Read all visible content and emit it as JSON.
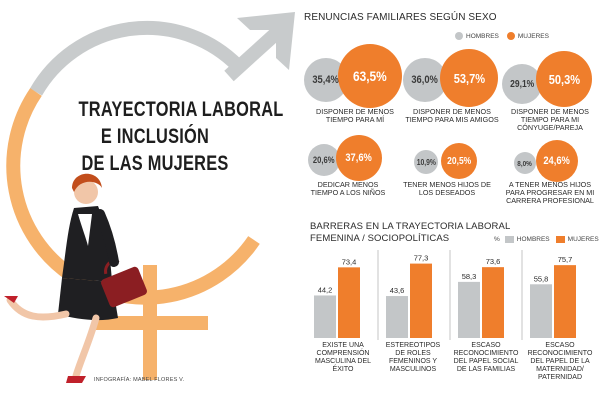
{
  "title": {
    "line1": "TRAYECTORIA LABORAL",
    "line2": "E INCLUSIÓN",
    "line3": "DE LAS MUJERES"
  },
  "credit": "INFOGRAFÍA: MABEL FLORES V.",
  "colors": {
    "hombres": "#c3c6c8",
    "mujeres": "#ef7e2c",
    "symbol_gray": "#c8cbcc",
    "symbol_orange": "#f6b26b"
  },
  "renuncias": {
    "title": "RENUNCIAS FAMILIARES SEGÚN SEXO",
    "legend": {
      "hombres": "HOMBRES",
      "mujeres": "MUJERES"
    },
    "items": [
      {
        "hombres": "35,4%",
        "mujeres": "63,5%",
        "label": "DISPONER DE MENOS TIEMPO PARA MÍ"
      },
      {
        "hombres": "36,0%",
        "mujeres": "53,7%",
        "label": "DISPONER DE MENOS TIEMPO PARA MIS AMIGOS"
      },
      {
        "hombres": "29,1%",
        "mujeres": "50,3%",
        "label": "DISPONER DE MENOS TIEMPO PARA MI CÓNYUGE/PAREJA"
      },
      {
        "hombres": "20,6%",
        "mujeres": "37,6%",
        "label": "DEDICAR MENOS TIEMPO A LOS NIÑOS"
      },
      {
        "hombres": "10,9%",
        "mujeres": "20,5%",
        "label": "TENER MENOS HIJOS DE LOS DESEADOS"
      },
      {
        "hombres": "8,0%",
        "mujeres": "24,6%",
        "label": "A TENER MENOS HIJOS PARA PROGRESAR EN MI CARRERA PROFESIONAL"
      }
    ]
  },
  "barreras": {
    "title_line1": "BARRERAS EN LA TRAYECTORIA LABORAL",
    "title_line2": "FEMENINA / SOCIOPOLÍTICAS",
    "legend": {
      "pct": "%",
      "hombres": "HOMBRES",
      "mujeres": "MUJERES"
    }
  },
  "chart_data": {
    "type": "bar",
    "title": "BARRERAS EN LA TRAYECTORIA LABORAL FEMENINA / SOCIOPOLÍTICAS",
    "categories": [
      "EXISTE UNA COMPRENSIÓN MASCULINA DEL ÉXITO",
      "ESTEREOTIPOS DE ROLES FEMENINOS Y MASCULINOS",
      "ESCASO RECONOCIMIENTO DEL PAPEL SOCIAL DE LAS FAMILIAS",
      "ESCASO RECONOCIMIENTO DEL PAPEL DE LA MATERNIDAD/ PATERNIDAD"
    ],
    "series": [
      {
        "name": "HOMBRES",
        "values": [
          44.2,
          43.6,
          58.3,
          55.8
        ],
        "labels": [
          "44,2",
          "43,6",
          "58,3",
          "55,8"
        ]
      },
      {
        "name": "MUJERES",
        "values": [
          73.4,
          77.3,
          73.6,
          75.7
        ],
        "labels": [
          "73,4",
          "77,3",
          "73,6",
          "75,7"
        ]
      }
    ],
    "ylabel": "%",
    "ylim": [
      0,
      80
    ],
    "grid": false,
    "legend": "top-right"
  }
}
